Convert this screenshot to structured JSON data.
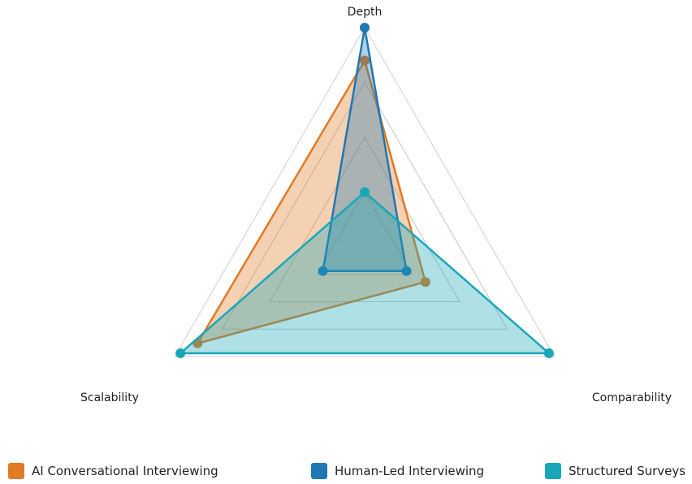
{
  "chart_data": {
    "type": "radar",
    "axes": [
      "Depth",
      "Comparability",
      "Scalability"
    ],
    "range": [
      0,
      1
    ],
    "grid_levels": 4,
    "series": [
      {
        "name": "AI Conversational Interviewing",
        "color": "#e07a25",
        "fill_opacity": 0.35,
        "values": {
          "Depth": 0.85,
          "Comparability": 0.32,
          "Scalability": 0.88
        }
      },
      {
        "name": "Human-Led Interviewing",
        "color": "#1f77b4",
        "fill_opacity": 0.35,
        "values": {
          "Depth": 1.0,
          "Comparability": 0.22,
          "Scalability": 0.22
        }
      },
      {
        "name": "Structured Surveys",
        "color": "#17a7b8",
        "fill_opacity": 0.35,
        "values": {
          "Depth": 0.25,
          "Comparability": 0.97,
          "Scalability": 0.97
        }
      }
    ],
    "legend_position": "bottom"
  }
}
